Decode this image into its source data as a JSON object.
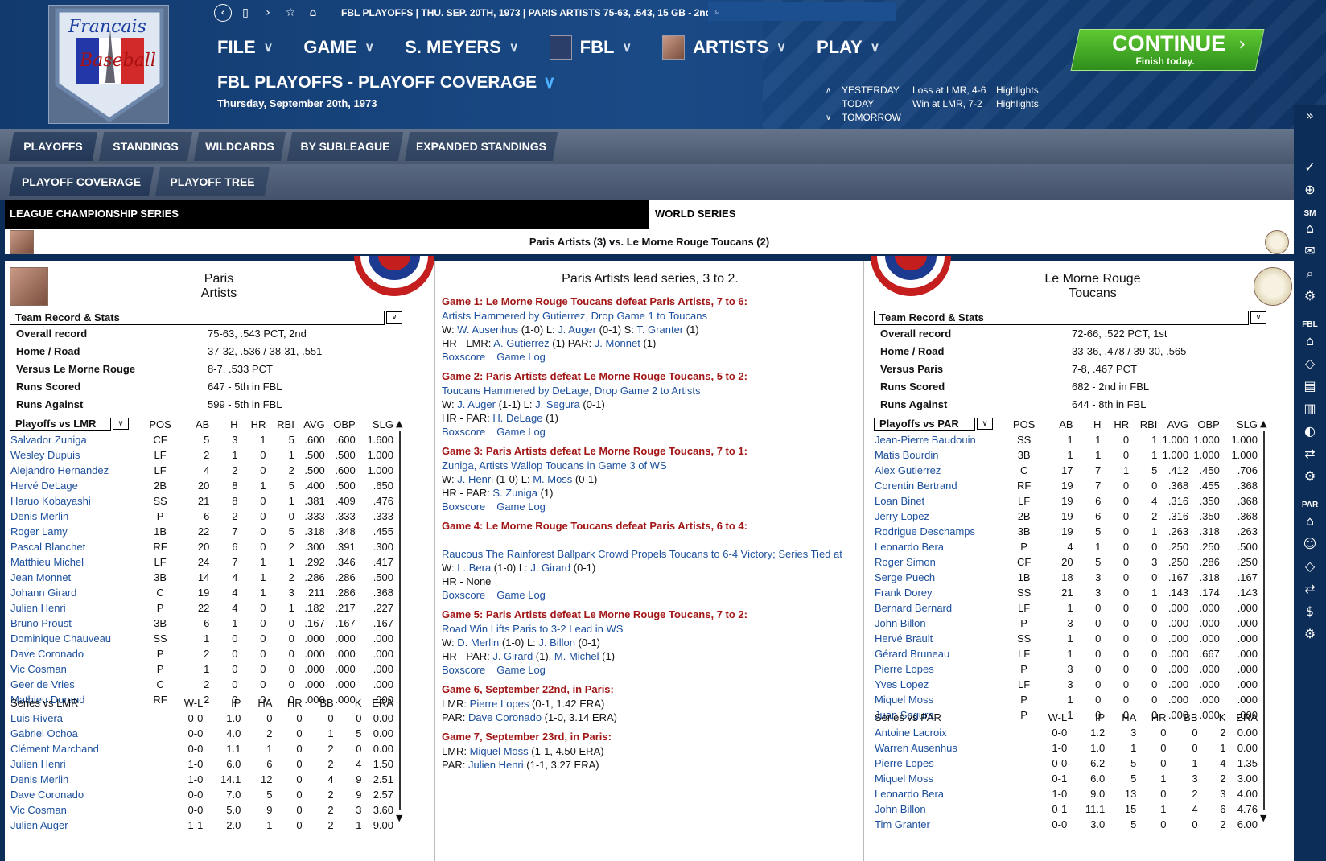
{
  "topbar": {
    "breadcrumb": "FBL PLAYOFFS  |  THU. SEP. 20TH, 1973  |  PARIS ARTISTS  75-63, .543, 15 GB - 2nd"
  },
  "logo": {
    "line1": "Francais",
    "line2": "Baseball"
  },
  "menu": [
    {
      "label": "FILE"
    },
    {
      "label": "GAME"
    },
    {
      "label": "S. MEYERS"
    },
    {
      "label": "FBL"
    },
    {
      "label": "ARTISTS"
    },
    {
      "label": "PLAY"
    }
  ],
  "page": {
    "title": "FBL PLAYOFFS - PLAYOFF COVERAGE",
    "date": "Thursday, September 20th, 1973"
  },
  "dayinfo": {
    "yesterday": {
      "label": "YESTERDAY",
      "result": "Loss at LMR, 4-6",
      "link": "Highlights"
    },
    "today": {
      "label": "TODAY",
      "result": "Win at LMR, 7-2",
      "link": "Highlights"
    },
    "tomorrow": {
      "label": "TOMORROW"
    }
  },
  "continue": {
    "label": "CONTINUE",
    "sub": "Finish today."
  },
  "tabs1": [
    "PLAYOFFS",
    "STANDINGS",
    "WILDCARDS",
    "BY SUBLEAGUE",
    "EXPANDED STANDINGS"
  ],
  "tabs2": [
    "PLAYOFF COVERAGE",
    "PLAYOFF TREE"
  ],
  "sidebar": {
    "sm": "SM",
    "fbl": "FBL",
    "par": "PAR"
  },
  "series": {
    "lcs": "LEAGUE CHAMPIONSHIP SERIES",
    "ws": "WORLD SERIES",
    "matchup": "Paris Artists (3) vs. Le Morne Rouge Toucans (2)",
    "lead": "Paris Artists lead series, 3 to 2."
  },
  "left": {
    "name1": "Paris",
    "name2": "Artists",
    "section": "Team Record & Stats",
    "record": [
      [
        "Overall record",
        "75-63, .543 PCT, 2nd"
      ],
      [
        "Home / Road",
        "37-32, .536 / 38-31, .551"
      ],
      [
        "Versus Le Morne Rouge",
        "8-7, .533 PCT"
      ],
      [
        "Runs Scored",
        "647 - 5th  in FBL"
      ],
      [
        "Runs Against",
        "599 - 5th  in FBL"
      ]
    ],
    "batsel": "Playoffs vs LMR",
    "batheaders": [
      "POS",
      "AB",
      "H",
      "HR",
      "RBI",
      "AVG",
      "OBP",
      "SLG"
    ],
    "batting": [
      [
        "Salvador Zuniga",
        "CF",
        "5",
        "3",
        "1",
        "5",
        ".600",
        ".600",
        "1.600"
      ],
      [
        "Wesley Dupuis",
        "LF",
        "2",
        "1",
        "0",
        "1",
        ".500",
        ".500",
        "1.000"
      ],
      [
        "Alejandro Hernandez",
        "LF",
        "4",
        "2",
        "0",
        "2",
        ".500",
        ".600",
        "1.000"
      ],
      [
        "Hervé DeLage",
        "2B",
        "20",
        "8",
        "1",
        "5",
        ".400",
        ".500",
        ".650"
      ],
      [
        "Haruo Kobayashi",
        "SS",
        "21",
        "8",
        "0",
        "1",
        ".381",
        ".409",
        ".476"
      ],
      [
        "Denis Merlin",
        "P",
        "6",
        "2",
        "0",
        "0",
        ".333",
        ".333",
        ".333"
      ],
      [
        "Roger Lamy",
        "1B",
        "22",
        "7",
        "0",
        "5",
        ".318",
        ".348",
        ".455"
      ],
      [
        "Pascal Blanchet",
        "RF",
        "20",
        "6",
        "0",
        "2",
        ".300",
        ".391",
        ".300"
      ],
      [
        "Matthieu Michel",
        "LF",
        "24",
        "7",
        "1",
        "1",
        ".292",
        ".346",
        ".417"
      ],
      [
        "Jean Monnet",
        "3B",
        "14",
        "4",
        "1",
        "2",
        ".286",
        ".286",
        ".500"
      ],
      [
        "Johann Girard",
        "C",
        "19",
        "4",
        "1",
        "3",
        ".211",
        ".286",
        ".368"
      ],
      [
        "Julien Henri",
        "P",
        "22",
        "4",
        "0",
        "1",
        ".182",
        ".217",
        ".227"
      ],
      [
        "Bruno Proust",
        "3B",
        "6",
        "1",
        "0",
        "0",
        ".167",
        ".167",
        ".167"
      ],
      [
        "Dominique Chauveau",
        "SS",
        "1",
        "0",
        "0",
        "0",
        ".000",
        ".000",
        ".000"
      ],
      [
        "Dave Coronado",
        "P",
        "2",
        "0",
        "0",
        "0",
        ".000",
        ".000",
        ".000"
      ],
      [
        "Vic Cosman",
        "P",
        "1",
        "0",
        "0",
        "0",
        ".000",
        ".000",
        ".000"
      ],
      [
        "Geer de Vries",
        "C",
        "2",
        "0",
        "0",
        "0",
        ".000",
        ".000",
        ".000"
      ],
      [
        "Mathieu Durand",
        "RF",
        "2",
        "0",
        "0",
        "0",
        ".000",
        ".000",
        ".000"
      ]
    ],
    "pitchheaders": [
      "Series vs LMR",
      "W-L",
      "IP",
      "HA",
      "HR",
      "BB",
      "K",
      "ERA"
    ],
    "pitching": [
      [
        "Luis Rivera",
        "0-0",
        "1.0",
        "0",
        "0",
        "0",
        "0",
        "0.00"
      ],
      [
        "Gabriel Ochoa",
        "0-0",
        "4.0",
        "2",
        "0",
        "1",
        "5",
        "0.00"
      ],
      [
        "Clément Marchand",
        "0-0",
        "1.1",
        "1",
        "0",
        "2",
        "0",
        "0.00"
      ],
      [
        "Julien Henri",
        "1-0",
        "6.0",
        "6",
        "0",
        "2",
        "4",
        "1.50"
      ],
      [
        "Denis Merlin",
        "1-0",
        "14.1",
        "12",
        "0",
        "4",
        "9",
        "2.51"
      ],
      [
        "Dave Coronado",
        "0-0",
        "7.0",
        "5",
        "0",
        "2",
        "9",
        "2.57"
      ],
      [
        "Vic Cosman",
        "0-0",
        "5.0",
        "9",
        "0",
        "2",
        "3",
        "3.60"
      ],
      [
        "Julien Auger",
        "1-1",
        "2.0",
        "1",
        "0",
        "2",
        "1",
        "9.00"
      ]
    ]
  },
  "right": {
    "name1": "Le Morne Rouge",
    "name2": "Toucans",
    "section": "Team Record & Stats",
    "record": [
      [
        "Overall record",
        "72-66, .522 PCT, 1st"
      ],
      [
        "Home / Road",
        "33-36, .478 / 39-30, .565"
      ],
      [
        "Versus Paris",
        "7-8, .467 PCT"
      ],
      [
        "Runs Scored",
        "682 - 2nd  in FBL"
      ],
      [
        "Runs Against",
        "644 - 8th  in FBL"
      ]
    ],
    "batsel": "Playoffs vs PAR",
    "batheaders": [
      "POS",
      "AB",
      "H",
      "HR",
      "RBI",
      "AVG",
      "OBP",
      "SLG"
    ],
    "batting": [
      [
        "Jean-Pierre Baudouin",
        "SS",
        "1",
        "1",
        "0",
        "1",
        "1.000",
        "1.000",
        "1.000"
      ],
      [
        "Matis Bourdin",
        "3B",
        "1",
        "1",
        "0",
        "1",
        "1.000",
        "1.000",
        "1.000"
      ],
      [
        "Alex Gutierrez",
        "C",
        "17",
        "7",
        "1",
        "5",
        ".412",
        ".450",
        ".706"
      ],
      [
        "Corentin Bertrand",
        "RF",
        "19",
        "7",
        "0",
        "0",
        ".368",
        ".455",
        ".368"
      ],
      [
        "Loan Binet",
        "LF",
        "19",
        "6",
        "0",
        "4",
        ".316",
        ".350",
        ".368"
      ],
      [
        "Jerry Lopez",
        "2B",
        "19",
        "6",
        "0",
        "2",
        ".316",
        ".350",
        ".368"
      ],
      [
        "Rodrigue Deschamps",
        "3B",
        "19",
        "5",
        "0",
        "1",
        ".263",
        ".318",
        ".263"
      ],
      [
        "Leonardo Bera",
        "P",
        "4",
        "1",
        "0",
        "0",
        ".250",
        ".250",
        ".500"
      ],
      [
        "Roger Simon",
        "CF",
        "20",
        "5",
        "0",
        "3",
        ".250",
        ".286",
        ".250"
      ],
      [
        "Serge Puech",
        "1B",
        "18",
        "3",
        "0",
        "0",
        ".167",
        ".318",
        ".167"
      ],
      [
        "Frank Dorey",
        "SS",
        "21",
        "3",
        "0",
        "1",
        ".143",
        ".174",
        ".143"
      ],
      [
        "Bernard Bernard",
        "LF",
        "1",
        "0",
        "0",
        "0",
        ".000",
        ".000",
        ".000"
      ],
      [
        "John Billon",
        "P",
        "3",
        "0",
        "0",
        "0",
        ".000",
        ".000",
        ".000"
      ],
      [
        "Hervé Brault",
        "SS",
        "1",
        "0",
        "0",
        "0",
        ".000",
        ".000",
        ".000"
      ],
      [
        "Gérard Bruneau",
        "LF",
        "1",
        "0",
        "0",
        "0",
        ".000",
        ".667",
        ".000"
      ],
      [
        "Pierre Lopes",
        "P",
        "3",
        "0",
        "0",
        "0",
        ".000",
        ".000",
        ".000"
      ],
      [
        "Yves Lopez",
        "LF",
        "3",
        "0",
        "0",
        "0",
        ".000",
        ".000",
        ".000"
      ],
      [
        "Miquel Moss",
        "P",
        "1",
        "0",
        "0",
        "0",
        ".000",
        ".000",
        ".000"
      ],
      [
        "Juan Segura",
        "P",
        "1",
        "0",
        "0",
        "0",
        ".000",
        ".000",
        ".000"
      ]
    ],
    "pitchheaders": [
      "Series vs PAR",
      "W-L",
      "IP",
      "HA",
      "HR",
      "BB",
      "K",
      "ERA"
    ],
    "pitching": [
      [
        "Antoine Lacroix",
        "0-0",
        "1.2",
        "3",
        "0",
        "0",
        "2",
        "0.00"
      ],
      [
        "Warren Ausenhus",
        "1-0",
        "1.0",
        "1",
        "0",
        "0",
        "1",
        "0.00"
      ],
      [
        "Pierre Lopes",
        "0-0",
        "6.2",
        "5",
        "0",
        "1",
        "4",
        "1.35"
      ],
      [
        "Miquel Moss",
        "0-1",
        "6.0",
        "5",
        "1",
        "3",
        "2",
        "3.00"
      ],
      [
        "Leonardo Bera",
        "1-0",
        "9.0",
        "13",
        "0",
        "2",
        "3",
        "4.00"
      ],
      [
        "John Billon",
        "0-1",
        "11.1",
        "15",
        "1",
        "4",
        "6",
        "4.76"
      ],
      [
        "Tim Granter",
        "0-0",
        "3.0",
        "5",
        "0",
        "0",
        "2",
        "6.00"
      ]
    ]
  },
  "games": [
    {
      "head": "Game 1: Le Morne Rouge Toucans defeat Paris Artists, 7 to 6:",
      "headline": "Artists Hammered by Gutierrez, Drop Game 1 to Toucans",
      "lines": [
        [
          [
            "W: ",
            0
          ],
          [
            "W. Ausenhus",
            1
          ],
          [
            " (1-0) L: ",
            0
          ],
          [
            "J. Auger",
            1
          ],
          [
            " (0-1) S: ",
            0
          ],
          [
            "T. Granter",
            1
          ],
          [
            " (1)",
            0
          ]
        ],
        [
          [
            "HR - LMR: ",
            0
          ],
          [
            "A. Gutierrez",
            1
          ],
          [
            " (1)  PAR: ",
            0
          ],
          [
            "J. Monnet",
            1
          ],
          [
            " (1)",
            0
          ]
        ]
      ]
    },
    {
      "head": "Game 2: Paris Artists defeat Le Morne Rouge Toucans, 5 to 2:",
      "headline": "Toucans Hammered by DeLage, Drop Game 2 to Artists",
      "lines": [
        [
          [
            "W: ",
            0
          ],
          [
            "J. Auger",
            1
          ],
          [
            " (1-1) L: ",
            0
          ],
          [
            "J. Segura",
            1
          ],
          [
            " (0-1)",
            0
          ]
        ],
        [
          [
            "HR - PAR: ",
            0
          ],
          [
            "H. DeLage",
            1
          ],
          [
            " (1)",
            0
          ]
        ]
      ]
    },
    {
      "head": "Game 3: Paris Artists defeat Le Morne Rouge Toucans, 7 to 1:",
      "headline": "Zuniga, Artists Wallop Toucans in Game 3 of WS",
      "lines": [
        [
          [
            "W: ",
            0
          ],
          [
            "J. Henri",
            1
          ],
          [
            " (1-0) L: ",
            0
          ],
          [
            "M. Moss",
            1
          ],
          [
            " (0-1)",
            0
          ]
        ],
        [
          [
            "HR - PAR: ",
            0
          ],
          [
            "S. Zuniga",
            1
          ],
          [
            " (1)",
            0
          ]
        ]
      ]
    },
    {
      "head": "Game 4: Le Morne Rouge Toucans defeat Paris Artists, 6 to 4:",
      "headline": "Raucous The Rainforest Ballpark Crowd Propels Toucans to 6-4 Victory; Series Tied at",
      "lines": [
        [
          [
            "W: ",
            0
          ],
          [
            "L. Bera",
            1
          ],
          [
            " (1-0) L: ",
            0
          ],
          [
            "J. Girard",
            1
          ],
          [
            " (0-1)",
            0
          ]
        ],
        [
          [
            "HR - None",
            0
          ]
        ]
      ]
    },
    {
      "head": "Game 5: Paris Artists defeat Le Morne Rouge Toucans, 7 to 2:",
      "headline": "Road Win Lifts Paris to 3-2 Lead in WS",
      "lines": [
        [
          [
            "W: ",
            0
          ],
          [
            "D. Merlin",
            1
          ],
          [
            " (1-0) L: ",
            0
          ],
          [
            "J. Billon",
            1
          ],
          [
            " (0-1)",
            0
          ]
        ],
        [
          [
            "HR - PAR: ",
            0
          ],
          [
            "J. Girard",
            1
          ],
          [
            " (1), ",
            0
          ],
          [
            "M. Michel",
            1
          ],
          [
            " (1)",
            0
          ]
        ]
      ]
    }
  ],
  "boxscore": "Boxscore",
  "gamelog": "Game Log",
  "upcoming": [
    {
      "head": "Game 6, September 22nd,  in Paris:",
      "lmr": [
        "LMR: ",
        "Pierre Lopes",
        " (0-1, 1.42 ERA)"
      ],
      "par": [
        "PAR: ",
        "Dave Coronado",
        " (1-0, 3.14 ERA)"
      ]
    },
    {
      "head": "Game 7, September 23rd,  in Paris:",
      "lmr": [
        "LMR: ",
        "Miquel Moss",
        " (1-1, 4.50 ERA)"
      ],
      "par": [
        "PAR: ",
        "Julien Henri",
        " (1-1, 3.27 ERA)"
      ]
    }
  ]
}
